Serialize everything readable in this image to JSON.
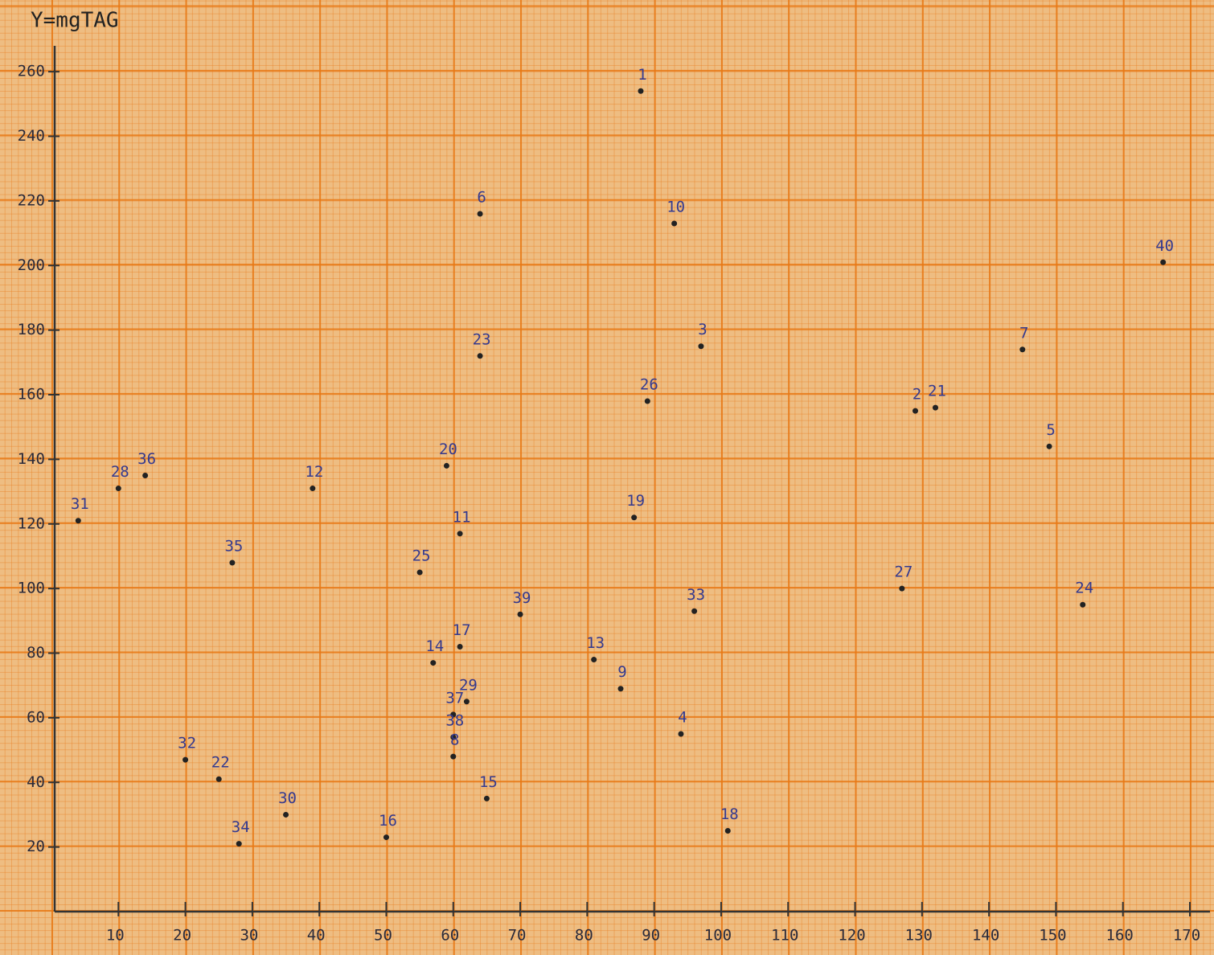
{
  "chart_data": {
    "type": "scatter",
    "ylabel": "Y=mgTAG",
    "point_labels": [
      "1",
      "6",
      "10",
      "40",
      "3",
      "7",
      "23",
      "26",
      "2",
      "21",
      "5",
      "20",
      "28",
      "36",
      "12",
      "31",
      "19",
      "11",
      "35",
      "25",
      "27",
      "24",
      "39",
      "33",
      "17",
      "14",
      "13",
      "9",
      "29",
      "37",
      "38",
      "4",
      "8",
      "32",
      "22",
      "15",
      "30",
      "16",
      "18",
      "34"
    ],
    "x": [
      88,
      64,
      93,
      166,
      97,
      145,
      64,
      89,
      129,
      132,
      149,
      59,
      10,
      14,
      39,
      4,
      87,
      61,
      27,
      55,
      127,
      154,
      70,
      96,
      61,
      57,
      81,
      85,
      62,
      60,
      60,
      94,
      60,
      20,
      25,
      65,
      35,
      50,
      101,
      28
    ],
    "y": [
      254,
      216,
      213,
      201,
      175,
      174,
      172,
      158,
      155,
      156,
      144,
      138,
      131,
      135,
      131,
      121,
      122,
      117,
      108,
      105,
      100,
      95,
      92,
      93,
      82,
      77,
      78,
      69,
      65,
      61,
      54,
      55,
      48,
      47,
      41,
      35,
      30,
      23,
      25,
      21
    ],
    "color": "#222222",
    "xlim": [
      0,
      173
    ],
    "ylim": [
      0,
      268
    ],
    "xticks": [
      10,
      20,
      30,
      40,
      50,
      60,
      70,
      80,
      90,
      100,
      110,
      120,
      130,
      140,
      150,
      160,
      170
    ],
    "yticks": [
      20,
      40,
      60,
      80,
      100,
      120,
      140,
      160,
      180,
      200,
      220,
      240,
      260
    ]
  }
}
